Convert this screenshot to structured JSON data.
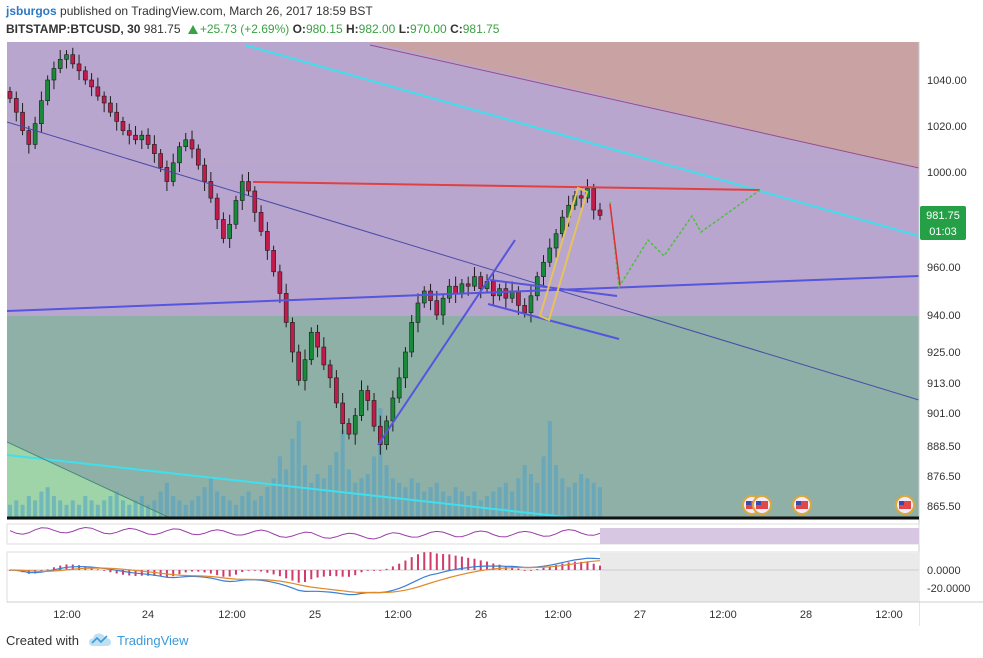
{
  "header": {
    "user": "jsburgos",
    "published_text": "published on TradingView.com, March 26, 2017 18:59 BST",
    "symbol": "BITSTAMP:BTCUSD, 30",
    "last_price": "981.75",
    "change": "+25.73 (+2.69%)",
    "o_label": "O:",
    "o_value": "980.15",
    "h_label": "H:",
    "h_value": "982.00",
    "l_label": "L:",
    "l_value": "970.00",
    "c_label": "C:",
    "c_value": "981.75"
  },
  "price_badge": {
    "price": "981.75",
    "countdown": "01:03"
  },
  "colors": {
    "pitchfork_upper": "#c9a3a3",
    "pitchfork_middle": "#b9a6cf",
    "pitchfork_lower": "#8eb0a6",
    "candle_up": "#1a8a3a",
    "candle_down": "#c21a4a",
    "cyan_trendline": "#3ee0ee",
    "blue_trendline": "#5555dd",
    "red_resistance": "#e24040",
    "channel_yellow": "#e6c35a",
    "projection_green": "#4fbf3f",
    "projection_red": "#e03030",
    "volume": "#4aa0c8",
    "badge_green": "#26a046"
  },
  "footer": {
    "created_with": "Created with",
    "brand": "TradingView"
  },
  "chart_data": {
    "type": "candlestick",
    "symbol": "BITSTAMP:BTCUSD",
    "interval": "30",
    "y_ticks": [
      "1040.00",
      "1020.00",
      "1000.00",
      "960.00",
      "940.00",
      "925.00",
      "913.00",
      "901.00",
      "888.50",
      "876.50",
      "865.50"
    ],
    "y_tick_values": [
      1040,
      1020,
      1000,
      960,
      940,
      925,
      913,
      901,
      888.5,
      876.5,
      865.5
    ],
    "x_ticks": [
      "12:00",
      "24",
      "12:00",
      "25",
      "12:00",
      "26",
      "12:00",
      "27",
      "12:00",
      "28",
      "12:00"
    ],
    "macd_ticks": [
      "0.0000",
      "-20.0000"
    ],
    "macd_tick_values": [
      0,
      -20
    ],
    "last": {
      "open": 980.15,
      "high": 982.0,
      "low": 970.0,
      "close": 981.75
    },
    "annotations": [
      "econ-event-flag",
      "econ-event-flag",
      "econ-event-flag",
      "econ-event-flag"
    ],
    "series": [
      {
        "name": "",
        "close": [
          1032,
          1026,
          1018,
          1012,
          1021,
          1031,
          1040,
          1045,
          1049,
          1051,
          1047,
          1044,
          1040,
          1037,
          1033,
          1030,
          1026,
          1022,
          1018,
          1016,
          1014,
          1016,
          1012,
          1008,
          1002,
          996,
          1004,
          1011,
          1014,
          1010,
          1003,
          996,
          989,
          980,
          972,
          978,
          988,
          996,
          992,
          983,
          975,
          967,
          958,
          949,
          937,
          925,
          914,
          922,
          933,
          927,
          920,
          915,
          905,
          897,
          893,
          900,
          910,
          906,
          896,
          889,
          898,
          907,
          915,
          925,
          937,
          945,
          950,
          946,
          940,
          947,
          952,
          949,
          953,
          952,
          956,
          951,
          954,
          948,
          951,
          947,
          950,
          944,
          941,
          948,
          956,
          962,
          968,
          974,
          981,
          986,
          990,
          989,
          993,
          984,
          981.75
        ]
      }
    ],
    "volume": [
      3,
      4,
      3,
      5,
      4,
      6,
      7,
      5,
      4,
      3,
      4,
      3,
      5,
      4,
      3,
      4,
      5,
      6,
      4,
      3,
      4,
      5,
      3,
      4,
      6,
      8,
      5,
      4,
      3,
      4,
      5,
      7,
      9,
      6,
      5,
      4,
      3,
      5,
      6,
      4,
      5,
      7,
      9,
      14,
      11,
      18,
      22,
      12,
      8,
      10,
      9,
      12,
      15,
      20,
      11,
      8,
      9,
      10,
      14,
      25,
      12,
      9,
      8,
      7,
      9,
      8,
      6,
      7,
      8,
      6,
      5,
      7,
      6,
      5,
      6,
      4,
      5,
      6,
      7,
      8,
      6,
      9,
      12,
      10,
      8,
      14,
      22,
      12,
      9,
      7,
      8,
      10,
      9,
      8,
      7
    ]
  }
}
